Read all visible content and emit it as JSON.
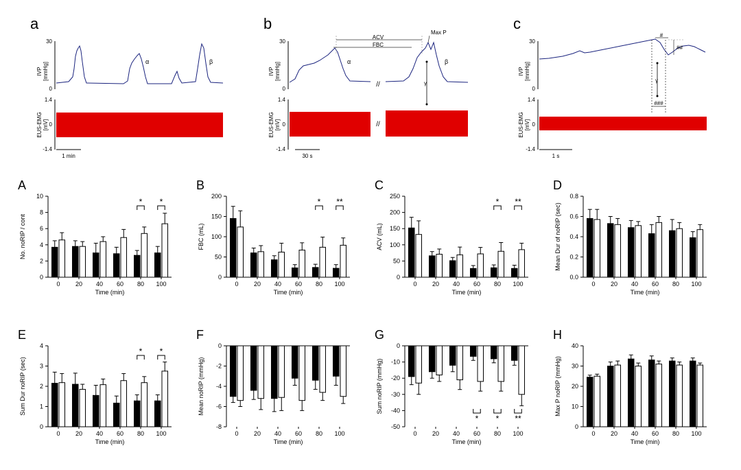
{
  "chart_data": [
    {
      "id": "a",
      "panel_letter": "a",
      "type": "line",
      "traces": [
        {
          "ylabel": "IVP\n[mmHg]",
          "yticks": [
            "30",
            "0"
          ],
          "ylim": [
            0,
            30
          ]
        },
        {
          "ylabel": "EUS-EMG\n[mV]",
          "yticks": [
            "1.4",
            "0",
            "-1.4"
          ],
          "ylim": [
            -1.4,
            1.4
          ]
        }
      ],
      "annotations": [
        "α",
        "β"
      ],
      "scale_bar": "1 min"
    },
    {
      "id": "b",
      "panel_letter": "b",
      "type": "line",
      "traces": [
        {
          "ylabel": "IVP\n[mmHg]",
          "yticks": [
            "30",
            "0"
          ],
          "ylim": [
            0,
            30
          ]
        },
        {
          "ylabel": "EUS-EMG\n[mV]",
          "yticks": [
            "1.4",
            "0",
            "-1.4"
          ],
          "ylim": [
            -1.4,
            1.4
          ]
        }
      ],
      "annotations": [
        "ACV",
        "FBC",
        "Max P",
        "α",
        "β",
        "γ",
        "//"
      ],
      "scale_bar": "30 s"
    },
    {
      "id": "c",
      "panel_letter": "c",
      "type": "line",
      "traces": [
        {
          "ylabel": "IVP\n[mmHg]",
          "yticks": [
            "30",
            "0"
          ],
          "ylim": [
            0,
            30
          ]
        },
        {
          "ylabel": "EUS-EMG\n[mV]",
          "yticks": [
            "1.4",
            "0",
            "-1.4"
          ],
          "ylim": [
            -1.4,
            1.4
          ]
        }
      ],
      "annotations": [
        "#",
        "##",
        "γ",
        "###"
      ],
      "scale_bar": "1 s"
    },
    {
      "id": "A",
      "panel_letter": "A",
      "type": "bar",
      "ylabel": "No. noRIP / cont",
      "xlabel": "Time (min)",
      "categories": [
        "0",
        "20",
        "40",
        "60",
        "80",
        "100"
      ],
      "ylim": [
        0,
        10
      ],
      "yticks": [
        0,
        2,
        4,
        6,
        8,
        10
      ],
      "ytick_labels": [
        "0",
        "2",
        "4",
        "6",
        "8",
        "10"
      ],
      "series": [
        {
          "fill": "#000000",
          "values": [
            3.7,
            3.8,
            3.0,
            2.9,
            2.7,
            3.0
          ],
          "errors": [
            0.8,
            0.7,
            1.2,
            0.8,
            0.6,
            0.8
          ]
        },
        {
          "fill": "#ffffff",
          "values": [
            4.6,
            3.8,
            4.4,
            4.9,
            5.4,
            6.6
          ],
          "errors": [
            0.9,
            0.6,
            0.6,
            1.0,
            0.8,
            1.3
          ]
        }
      ],
      "significance": [
        {
          "category": "80",
          "label": "*",
          "type": "top"
        },
        {
          "category": "100",
          "label": "*",
          "type": "top"
        }
      ]
    },
    {
      "id": "B",
      "panel_letter": "B",
      "type": "bar",
      "ylabel": "FBC (mL)",
      "xlabel": "Time (min)",
      "categories": [
        "0",
        "20",
        "40",
        "60",
        "80",
        "100"
      ],
      "ylim": [
        0,
        200
      ],
      "yticks": [
        0,
        50,
        100,
        150,
        200
      ],
      "ytick_labels": [
        "0",
        "50",
        "100",
        "150",
        "200"
      ],
      "series": [
        {
          "fill": "#000000",
          "values": [
            145,
            60,
            43,
            23,
            24,
            22
          ],
          "errors": [
            30,
            12,
            10,
            8,
            8,
            9
          ]
        },
        {
          "fill": "#ffffff",
          "values": [
            124,
            63,
            62,
            67,
            74,
            79
          ],
          "errors": [
            40,
            15,
            22,
            18,
            25,
            18
          ]
        }
      ],
      "significance": [
        {
          "category": "80",
          "label": "*",
          "type": "top"
        },
        {
          "category": "100",
          "label": "**",
          "type": "top"
        }
      ]
    },
    {
      "id": "C",
      "panel_letter": "C",
      "type": "bar",
      "ylabel": "ACV (mL)",
      "xlabel": "Time (min)",
      "categories": [
        "0",
        "20",
        "40",
        "60",
        "80",
        "100"
      ],
      "ylim": [
        0,
        250
      ],
      "yticks": [
        0,
        50,
        100,
        150,
        200,
        250
      ],
      "ytick_labels": [
        "0",
        "50",
        "100",
        "150",
        "200",
        "250"
      ],
      "series": [
        {
          "fill": "#000000",
          "values": [
            152,
            66,
            51,
            27,
            29,
            27
          ],
          "errors": [
            33,
            13,
            10,
            9,
            9,
            10
          ]
        },
        {
          "fill": "#ffffff",
          "values": [
            132,
            71,
            69,
            72,
            80,
            85
          ],
          "errors": [
            42,
            16,
            24,
            20,
            27,
            20
          ]
        }
      ],
      "significance": [
        {
          "category": "80",
          "label": "*",
          "type": "top"
        },
        {
          "category": "100",
          "label": "**",
          "type": "top"
        }
      ]
    },
    {
      "id": "D",
      "panel_letter": "D",
      "type": "bar",
      "ylabel": "Mean Dur of noRIP (sec)",
      "xlabel": "Time (min)",
      "categories": [
        "0",
        "20",
        "40",
        "60",
        "80",
        "100"
      ],
      "ylim": [
        0,
        0.8
      ],
      "yticks": [
        0,
        0.2,
        0.4,
        0.6,
        0.8
      ],
      "ytick_labels": [
        "0.0",
        "0.2",
        "0.4",
        "0.6",
        "0.8"
      ],
      "series": [
        {
          "fill": "#000000",
          "values": [
            0.58,
            0.53,
            0.49,
            0.43,
            0.46,
            0.39
          ],
          "errors": [
            0.09,
            0.07,
            0.07,
            0.09,
            0.11,
            0.06
          ]
        },
        {
          "fill": "#ffffff",
          "values": [
            0.57,
            0.52,
            0.51,
            0.54,
            0.48,
            0.47
          ],
          "errors": [
            0.1,
            0.06,
            0.04,
            0.06,
            0.06,
            0.05
          ]
        }
      ],
      "significance": []
    },
    {
      "id": "E",
      "panel_letter": "E",
      "type": "bar",
      "ylabel": "Sum Dur noRIP (sec)",
      "xlabel": "Time (min)",
      "categories": [
        "0",
        "20",
        "40",
        "60",
        "80",
        "100"
      ],
      "ylim": [
        0,
        4
      ],
      "yticks": [
        0,
        1,
        2,
        3,
        4
      ],
      "ytick_labels": [
        "0",
        "1",
        "2",
        "3",
        "4"
      ],
      "series": [
        {
          "fill": "#000000",
          "values": [
            2.15,
            2.1,
            1.55,
            1.17,
            1.28,
            1.28
          ],
          "errors": [
            0.55,
            0.55,
            0.5,
            0.35,
            0.3,
            0.3
          ]
        },
        {
          "fill": "#ffffff",
          "values": [
            2.18,
            1.85,
            2.08,
            2.28,
            2.18,
            2.75
          ],
          "errors": [
            0.45,
            0.25,
            0.28,
            0.35,
            0.3,
            0.45
          ]
        }
      ],
      "significance": [
        {
          "category": "80",
          "label": "*",
          "type": "top"
        },
        {
          "category": "100",
          "label": "*",
          "type": "top"
        }
      ]
    },
    {
      "id": "F",
      "panel_letter": "F",
      "type": "bar",
      "ylabel": "Mean noRIP (mmHg)",
      "xlabel": "Time (min)",
      "categories": [
        "0",
        "20",
        "40",
        "60",
        "80",
        "100"
      ],
      "ylim": [
        -8,
        0
      ],
      "yticks": [
        -8,
        -6,
        -4,
        -2,
        0
      ],
      "ytick_labels": [
        "-8",
        "-6",
        "-4",
        "-2",
        "0"
      ],
      "series": [
        {
          "fill": "#000000",
          "values": [
            -5.0,
            -4.4,
            -5.2,
            -3.2,
            -3.4,
            -3.0
          ],
          "errors": [
            0.6,
            0.9,
            1.3,
            0.7,
            0.9,
            0.9
          ]
        },
        {
          "fill": "#ffffff",
          "values": [
            -5.4,
            -5.2,
            -5.1,
            -5.4,
            -4.6,
            -5.0
          ],
          "errors": [
            0.6,
            1.1,
            1.3,
            1.0,
            0.8,
            0.7
          ]
        }
      ],
      "significance": []
    },
    {
      "id": "G",
      "panel_letter": "G",
      "type": "bar",
      "ylabel": "Sum noRIP (mmHg)",
      "xlabel": "Time (min)",
      "categories": [
        "0",
        "20",
        "40",
        "60",
        "80",
        "100"
      ],
      "ylim": [
        -50,
        0
      ],
      "yticks": [
        -50,
        -40,
        -30,
        -20,
        -10,
        0
      ],
      "ytick_labels": [
        "-50",
        "-40",
        "-30",
        "-20",
        "-10",
        "0"
      ],
      "series": [
        {
          "fill": "#000000",
          "values": [
            -19,
            -16,
            -12,
            -6.5,
            -8,
            -9
          ],
          "errors": [
            5,
            4,
            4,
            2.5,
            2.5,
            3
          ]
        },
        {
          "fill": "#ffffff",
          "values": [
            -23,
            -18,
            -21,
            -22,
            -22,
            -30
          ],
          "errors": [
            7,
            4,
            6,
            6,
            6,
            7
          ]
        }
      ],
      "significance": [
        {
          "category": "60",
          "label": "*",
          "type": "bottom"
        },
        {
          "category": "80",
          "label": "*",
          "type": "bottom"
        },
        {
          "category": "100",
          "label": "**",
          "type": "bottom"
        }
      ]
    },
    {
      "id": "H",
      "panel_letter": "H",
      "type": "bar",
      "ylabel": "Max P noRIP (mmHg)",
      "xlabel": "Time (min)",
      "categories": [
        "0",
        "20",
        "40",
        "60",
        "80",
        "100"
      ],
      "ylim": [
        0,
        40
      ],
      "yticks": [
        0,
        10,
        20,
        30,
        40
      ],
      "ytick_labels": [
        "0",
        "10",
        "20",
        "30",
        "40"
      ],
      "series": [
        {
          "fill": "#000000",
          "values": [
            24.5,
            30,
            33.5,
            33,
            32.5,
            32.5
          ],
          "errors": [
            1.0,
            2.0,
            2.0,
            2.0,
            1.5,
            1.5
          ]
        },
        {
          "fill": "#ffffff",
          "values": [
            25,
            30.5,
            30,
            31,
            30.5,
            30.5
          ],
          "errors": [
            1.0,
            2.0,
            1.5,
            1.5,
            1.5,
            1.0
          ]
        }
      ],
      "significance": []
    }
  ]
}
